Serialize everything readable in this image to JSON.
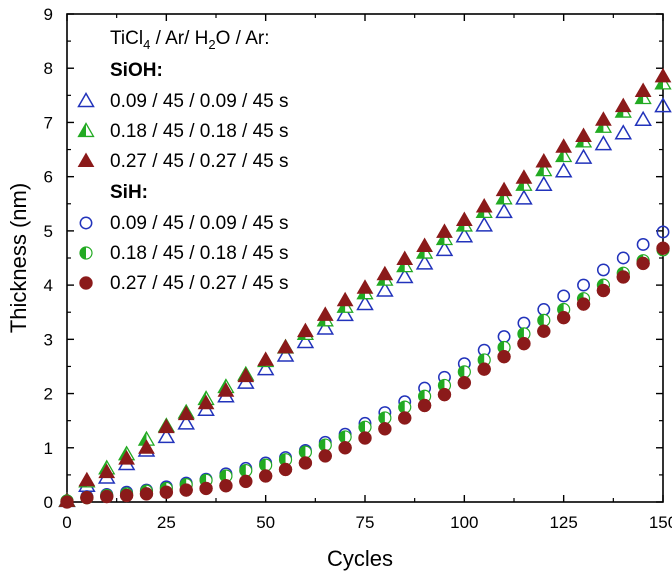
{
  "chart_data": {
    "type": "scatter",
    "xlabel": "Cycles",
    "ylabel": "Thickness (nm)",
    "xlim": [
      0,
      150
    ],
    "ylim": [
      0,
      9
    ],
    "xticks": [
      0,
      25,
      50,
      75,
      100,
      125,
      150
    ],
    "yticks": [
      0,
      1,
      2,
      3,
      4,
      5,
      6,
      7,
      8,
      9
    ],
    "grid": false,
    "legend_placement": "top-left",
    "legend_title": {
      "base": "TiCl",
      "sub1": "4",
      "mid": " / Ar/ H",
      "sub2": "2",
      "end": "O / Ar:"
    },
    "groups": [
      {
        "label": "SiOH:",
        "series": [
          {
            "name": "0.09 / 45 / 0.09 / 45 s",
            "marker": "triangle-open",
            "color": "#2233bb",
            "x": [
              0,
              5,
              10,
              15,
              20,
              25,
              30,
              35,
              40,
              45,
              50,
              55,
              60,
              65,
              70,
              75,
              80,
              85,
              90,
              95,
              100,
              105,
              110,
              115,
              120,
              125,
              130,
              135,
              140,
              145,
              150
            ],
            "y": [
              0.02,
              0.3,
              0.45,
              0.7,
              0.95,
              1.2,
              1.45,
              1.7,
              1.95,
              2.2,
              2.45,
              2.7,
              2.95,
              3.2,
              3.45,
              3.65,
              3.9,
              4.15,
              4.4,
              4.65,
              4.9,
              5.1,
              5.35,
              5.6,
              5.85,
              6.1,
              6.35,
              6.6,
              6.8,
              7.05,
              7.3
            ]
          },
          {
            "name": "0.18 / 45 / 0.18 / 45 s",
            "marker": "triangle-half",
            "color": "#22aa22",
            "x": [
              0,
              5,
              10,
              15,
              20,
              25,
              30,
              35,
              40,
              45,
              50,
              55,
              60,
              65,
              70,
              75,
              80,
              85,
              90,
              95,
              100,
              105,
              110,
              115,
              120,
              125,
              130,
              135,
              140,
              145,
              150
            ],
            "y": [
              0.02,
              0.38,
              0.62,
              0.88,
              1.15,
              1.4,
              1.65,
              1.9,
              2.12,
              2.35,
              2.6,
              2.85,
              3.1,
              3.35,
              3.6,
              3.85,
              4.1,
              4.35,
              4.6,
              4.85,
              5.1,
              5.35,
              5.6,
              5.85,
              6.12,
              6.38,
              6.65,
              6.92,
              7.2,
              7.45,
              7.72
            ]
          },
          {
            "name": "0.27 / 45 / 0.27 / 45 s",
            "marker": "triangle-filled",
            "color": "#8b1a1a",
            "x": [
              0,
              5,
              10,
              15,
              20,
              25,
              30,
              35,
              40,
              45,
              50,
              55,
              60,
              65,
              70,
              75,
              80,
              85,
              90,
              95,
              100,
              105,
              110,
              115,
              120,
              125,
              130,
              135,
              140,
              145,
              150
            ],
            "y": [
              0.02,
              0.4,
              0.55,
              0.8,
              1.0,
              1.38,
              1.62,
              1.82,
              2.05,
              2.32,
              2.62,
              2.85,
              3.15,
              3.45,
              3.72,
              3.95,
              4.2,
              4.48,
              4.72,
              4.98,
              5.2,
              5.45,
              5.75,
              5.98,
              6.28,
              6.55,
              6.75,
              7.05,
              7.3,
              7.58,
              7.85
            ]
          }
        ]
      },
      {
        "label": "SiH:",
        "series": [
          {
            "name": "0.09 / 45 / 0.09 / 45 s",
            "marker": "circle-open",
            "color": "#2233bb",
            "x": [
              0,
              5,
              10,
              15,
              20,
              25,
              30,
              35,
              40,
              45,
              50,
              55,
              60,
              65,
              70,
              75,
              80,
              85,
              90,
              95,
              100,
              105,
              110,
              115,
              120,
              125,
              130,
              135,
              140,
              145,
              150
            ],
            "y": [
              0.02,
              0.1,
              0.14,
              0.18,
              0.22,
              0.28,
              0.35,
              0.42,
              0.52,
              0.62,
              0.72,
              0.82,
              0.95,
              1.1,
              1.25,
              1.45,
              1.65,
              1.85,
              2.1,
              2.3,
              2.55,
              2.8,
              3.05,
              3.3,
              3.55,
              3.8,
              4.0,
              4.28,
              4.5,
              4.75,
              4.98
            ]
          },
          {
            "name": "0.18 / 45 / 0.18 / 45 s",
            "marker": "circle-half",
            "color": "#22aa22",
            "x": [
              0,
              5,
              10,
              15,
              20,
              25,
              30,
              35,
              40,
              45,
              50,
              55,
              60,
              65,
              70,
              75,
              80,
              85,
              90,
              95,
              100,
              105,
              110,
              115,
              120,
              125,
              130,
              135,
              140,
              145,
              150
            ],
            "y": [
              0.02,
              0.08,
              0.12,
              0.15,
              0.2,
              0.25,
              0.32,
              0.4,
              0.48,
              0.58,
              0.68,
              0.78,
              0.92,
              1.05,
              1.2,
              1.38,
              1.55,
              1.75,
              1.95,
              2.15,
              2.4,
              2.62,
              2.85,
              3.1,
              3.35,
              3.55,
              3.75,
              4.0,
              4.22,
              4.45,
              4.65
            ]
          },
          {
            "name": "0.27 / 45 / 0.27 / 45 s",
            "marker": "circle-filled",
            "color": "#8b1a1a",
            "x": [
              0,
              5,
              10,
              15,
              20,
              25,
              30,
              35,
              40,
              45,
              50,
              55,
              60,
              65,
              70,
              75,
              80,
              85,
              90,
              95,
              100,
              105,
              110,
              115,
              120,
              125,
              130,
              135,
              140,
              145,
              150
            ],
            "y": [
              0.0,
              0.08,
              0.1,
              0.12,
              0.15,
              0.18,
              0.22,
              0.25,
              0.3,
              0.38,
              0.48,
              0.6,
              0.72,
              0.85,
              1.0,
              1.18,
              1.35,
              1.55,
              1.78,
              1.98,
              2.2,
              2.45,
              2.68,
              2.92,
              3.15,
              3.4,
              3.65,
              3.9,
              4.15,
              4.4,
              4.68
            ]
          }
        ]
      }
    ]
  }
}
